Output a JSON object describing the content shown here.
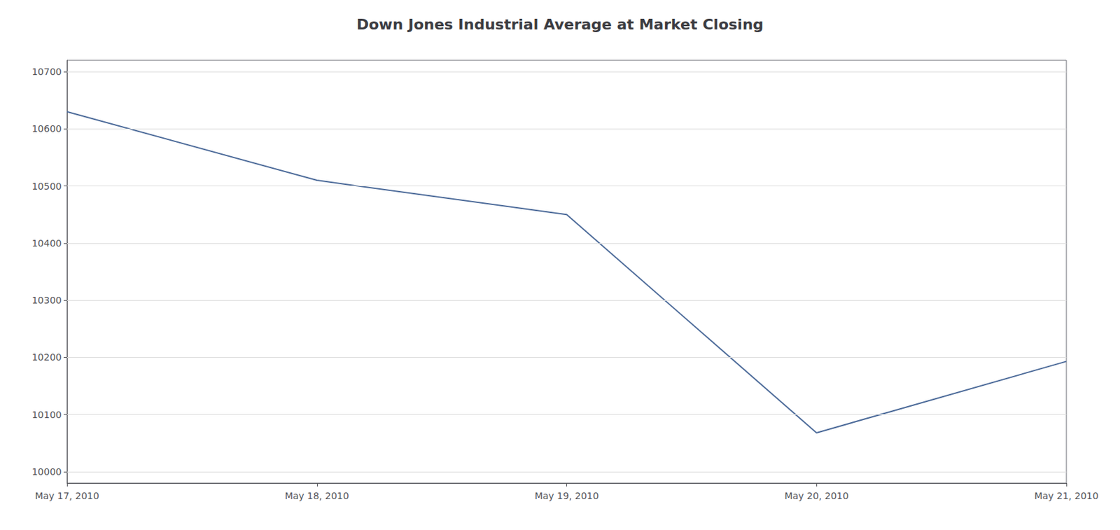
{
  "chart_data": {
    "type": "line",
    "title": "Down Jones Industrial Average at Market Closing",
    "categories": [
      "May 17, 2010",
      "May 18, 2010",
      "May 19, 2010",
      "May 20, 2010",
      "May 21, 2010"
    ],
    "values": [
      10630,
      10510,
      10450,
      10068,
      10193
    ],
    "color": "#4f6d9b",
    "ylim": [
      9980,
      10720
    ],
    "yticks": [
      10000,
      10100,
      10200,
      10300,
      10400,
      10500,
      10600,
      10700
    ],
    "grid": true
  }
}
